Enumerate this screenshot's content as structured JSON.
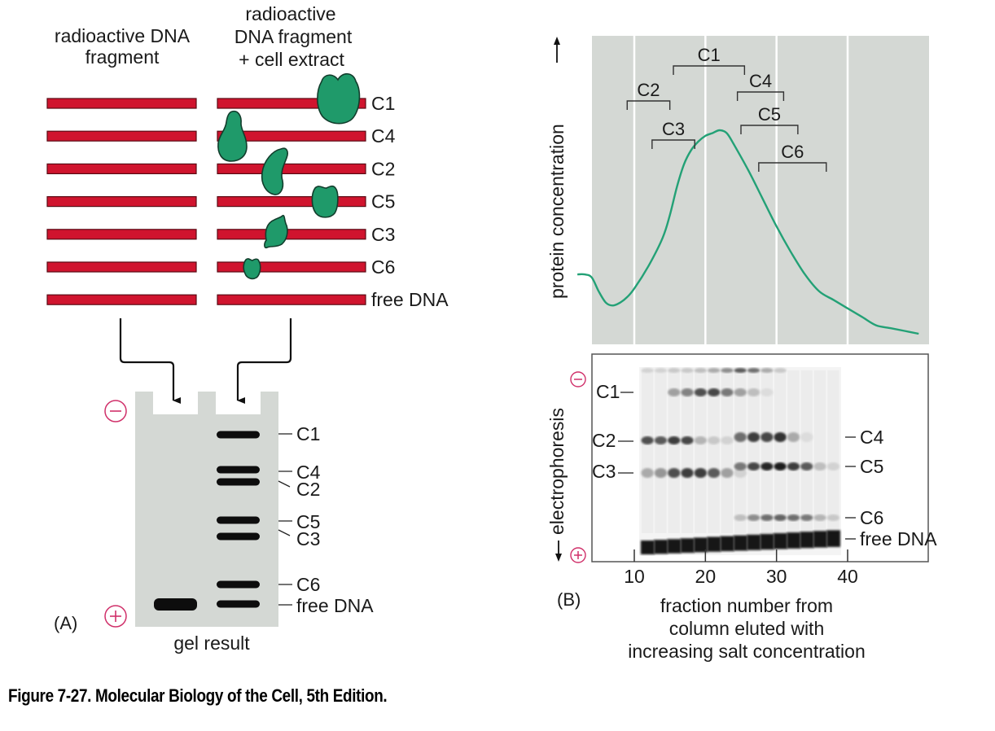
{
  "figure": {
    "caption": "Figure 7-27. Molecular Biology of the Cell, 5th Edition."
  },
  "colors": {
    "dna": "#d0142e",
    "dna_outline": "#5a0a14",
    "protein": "#1f9a6a",
    "protein_outline": "#123d2c",
    "panel_bg": "#d4d8d4",
    "curve": "#23a176",
    "charge": "#d0306a",
    "band": "#0d0d0d"
  },
  "panel_a": {
    "label": "(A)",
    "col1_header": [
      "radioactive DNA",
      "fragment"
    ],
    "col2_header": [
      "radioactive",
      "DNA fragment",
      "+ cell extract"
    ],
    "complexes": [
      {
        "label": "C1",
        "protein": "large-heart"
      },
      {
        "label": "C4",
        "protein": "pear"
      },
      {
        "label": "C2",
        "protein": "bean"
      },
      {
        "label": "C5",
        "protein": "notched-oval"
      },
      {
        "label": "C3",
        "protein": "leaf"
      },
      {
        "label": "C6",
        "protein": "small-notched"
      },
      {
        "label": "free DNA",
        "protein": "none"
      }
    ],
    "gel": {
      "title": "gel result",
      "minus_symbol": "−",
      "plus_symbol": "+",
      "bands_order": [
        "C1",
        "C4",
        "C2",
        "C5",
        "C3",
        "C6",
        "free DNA"
      ]
    }
  },
  "panel_b": {
    "label": "(B)",
    "profile": {
      "ylabel": "protein concentration",
      "brackets": [
        {
          "label": "C1",
          "from": 15.5,
          "to": 25.5
        },
        {
          "label": "C2",
          "from": 9,
          "to": 15
        },
        {
          "label": "C3",
          "from": 12.5,
          "to": 18.5
        },
        {
          "label": "C4",
          "from": 24.5,
          "to": 31
        },
        {
          "label": "C5",
          "from": 25,
          "to": 33
        },
        {
          "label": "C6",
          "from": 27.5,
          "to": 37
        }
      ]
    },
    "gel": {
      "ylabel": "electrophoresis",
      "minus_symbol": "−",
      "plus_symbol": "+",
      "left_labels": [
        "C1",
        "C2",
        "C3"
      ],
      "right_labels": [
        "C4",
        "C5",
        "C6",
        "free DNA"
      ],
      "xticks": [
        "10",
        "20",
        "30",
        "40"
      ],
      "xlabel": [
        "fraction number from",
        "column eluted with",
        "increasing salt concentration"
      ]
    }
  },
  "chart_data": {
    "type": "line",
    "title": "",
    "xlabel": "fraction number from column eluted with increasing salt concentration",
    "ylabel": "protein concentration",
    "xlim": [
      2,
      50
    ],
    "ylim": [
      0,
      1
    ],
    "xticks": [
      10,
      20,
      30,
      40
    ],
    "grid": true,
    "series": [
      {
        "name": "protein concentration",
        "x": [
          2,
          3,
          4,
          5,
          6,
          7,
          8,
          9,
          10,
          12,
          14,
          15,
          16,
          17,
          18,
          19,
          20,
          21,
          22,
          23,
          24,
          26,
          28,
          30,
          32,
          34,
          36,
          38,
          40,
          42,
          44,
          46,
          48,
          50
        ],
        "y": [
          0.21,
          0.21,
          0.2,
          0.15,
          0.11,
          0.1,
          0.11,
          0.13,
          0.16,
          0.24,
          0.34,
          0.42,
          0.52,
          0.6,
          0.65,
          0.68,
          0.7,
          0.71,
          0.72,
          0.71,
          0.67,
          0.58,
          0.48,
          0.38,
          0.29,
          0.21,
          0.15,
          0.12,
          0.09,
          0.06,
          0.03,
          0.02,
          0.01,
          0.0
        ]
      }
    ]
  }
}
